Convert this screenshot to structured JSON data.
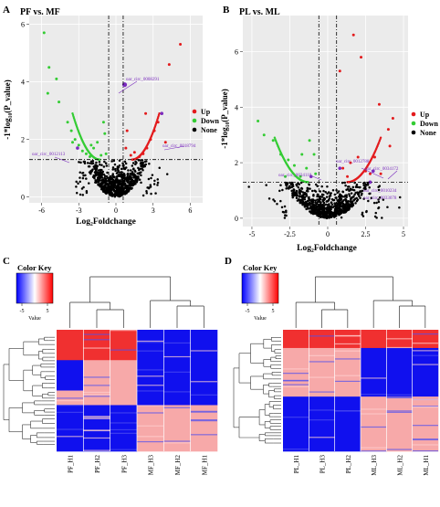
{
  "panels": {
    "A": {
      "letter": "A",
      "title": "PF vs. MF",
      "xlabel": "Log₂Foldchange",
      "ylabel": "-1*log₁₀(P_value)",
      "legend": [
        {
          "name": "Up",
          "color": "#e31a1c"
        },
        {
          "name": "Down",
          "color": "#33cc33"
        },
        {
          "name": "None",
          "color": "#000000"
        }
      ],
      "annotations": [
        "oar_circ_0008291",
        "oar_circ_0018794",
        "oar_circ_0012113"
      ]
    },
    "B": {
      "letter": "B",
      "title": "PL vs. ML",
      "xlabel": "Log₂Foldchange",
      "ylabel": "-1*log₁₀(P_value)",
      "legend": [
        {
          "name": "Up",
          "color": "#e31a1c"
        },
        {
          "name": "Down",
          "color": "#33cc33"
        },
        {
          "name": "None",
          "color": "#000000"
        }
      ],
      "annotations": [
        "oar_circ_0012788",
        "oar_circ_0034172",
        "oar_circ_0034110",
        "oar_circ_0010234",
        "oar_circ_0033078"
      ]
    },
    "C": {
      "letter": "C",
      "color_key_title": "Color Key",
      "color_key_ticks": [
        "-5",
        "5"
      ],
      "color_key_xlabel": "Value",
      "columns": [
        "PF_H1",
        "PF_H2",
        "PF_H3",
        "MF_H3",
        "MF_H2",
        "MF_H1"
      ]
    },
    "D": {
      "letter": "D",
      "color_key_title": "Color Key",
      "color_key_ticks": [
        "-5",
        "5"
      ],
      "color_key_xlabel": "Value",
      "columns": [
        "PL_H1",
        "PL_H3",
        "PL_H2",
        "ML_H3",
        "ML_H2",
        "ML_H1"
      ]
    }
  },
  "chart_data": [
    {
      "type": "scatter",
      "title": "PF vs. MF",
      "xlabel": "Log₂Foldchange",
      "ylabel": "-1*log₁₀(P_value)",
      "xlim": [
        -7,
        7
      ],
      "ylim": [
        -0.2,
        6.3
      ],
      "xticks": [
        -6,
        -3,
        0,
        3,
        6
      ],
      "yticks": [
        0,
        2,
        4,
        6
      ],
      "thresholds": {
        "x": [
          -0.585,
          0.585
        ],
        "y": 1.3
      },
      "series": [
        {
          "name": "Up",
          "color": "#e31a1c",
          "points": [
            [
              5.2,
              5.3
            ],
            [
              4.3,
              4.6
            ],
            [
              3.7,
              2.9
            ],
            [
              3.4,
              2.6
            ],
            [
              3.1,
              2.3
            ],
            [
              2.8,
              2.0
            ],
            [
              2.5,
              1.7
            ],
            [
              2.2,
              1.5
            ],
            [
              1.9,
              1.4
            ],
            [
              1.5,
              1.55
            ],
            [
              1.2,
              1.45
            ],
            [
              0.9,
              2.3
            ],
            [
              0.8,
              1.7
            ],
            [
              4.0,
              1.9
            ],
            [
              2.4,
              2.9
            ],
            [
              0.7,
              3.9
            ]
          ]
        },
        {
          "name": "Down",
          "color": "#33cc33",
          "points": [
            [
              -5.8,
              5.7
            ],
            [
              -5.4,
              4.5
            ],
            [
              -4.8,
              4.1
            ],
            [
              -5.5,
              3.6
            ],
            [
              -4.6,
              3.3
            ],
            [
              -3.9,
              2.6
            ],
            [
              -3.6,
              2.3
            ],
            [
              -3.3,
              2.0
            ],
            [
              -3.0,
              1.8
            ],
            [
              -2.7,
              1.6
            ],
            [
              -2.4,
              1.5
            ],
            [
              -2.1,
              1.4
            ],
            [
              -1.8,
              1.7
            ],
            [
              -1.5,
              1.9
            ],
            [
              -1.2,
              1.45
            ],
            [
              -0.9,
              2.2
            ],
            [
              -1.0,
              2.6
            ],
            [
              -0.8,
              1.5
            ],
            [
              -2.0,
              1.8
            ],
            [
              -3.5,
              1.9
            ]
          ]
        },
        {
          "name": "None",
          "color": "#000000",
          "points": []
        }
      ],
      "highlighted": [
        {
          "label": "oar_circ_0008291",
          "x": 0.7,
          "y": 3.9
        },
        {
          "label": "oar_circ_0018794",
          "x": 3.7,
          "y": 2.9
        },
        {
          "label": "oar_circ_0012113",
          "x": -3.1,
          "y": 1.7
        }
      ]
    },
    {
      "type": "scatter",
      "title": "PL vs. ML",
      "xlabel": "Log₂Foldchange",
      "ylabel": "-1*log₁₀(P_value)",
      "xlim": [
        -5.6,
        5.3
      ],
      "ylim": [
        -0.3,
        7.3
      ],
      "xticks": [
        -5,
        -2.5,
        0,
        2.5,
        5
      ],
      "yticks": [
        0,
        2,
        4,
        6
      ],
      "thresholds": {
        "x": [
          -0.585,
          0.585
        ],
        "y": 1.3
      },
      "series": [
        {
          "name": "Up",
          "color": "#e31a1c",
          "points": [
            [
              1.7,
              6.6
            ],
            [
              2.2,
              5.8
            ],
            [
              0.8,
              5.3
            ],
            [
              3.4,
              4.1
            ],
            [
              4.3,
              3.6
            ],
            [
              4.0,
              3.2
            ],
            [
              3.1,
              2.2
            ],
            [
              2.0,
              2.2
            ],
            [
              1.5,
              2.0
            ],
            [
              1.0,
              1.8
            ],
            [
              2.5,
              1.7
            ],
            [
              3.5,
              1.6
            ],
            [
              4.1,
              2.6
            ],
            [
              2.8,
              1.6
            ],
            [
              1.3,
              1.5
            ]
          ]
        },
        {
          "name": "Down",
          "color": "#33cc33",
          "points": [
            [
              -4.6,
              3.5
            ],
            [
              -4.2,
              3.0
            ],
            [
              -3.6,
              2.8
            ],
            [
              -3.1,
              2.3
            ],
            [
              -2.6,
              2.1
            ],
            [
              -2.2,
              1.9
            ],
            [
              -1.7,
              2.3
            ],
            [
              -1.2,
              2.8
            ],
            [
              -1.8,
              1.5
            ],
            [
              -0.8,
              1.6
            ],
            [
              -1.4,
              1.8
            ],
            [
              -2.8,
              1.5
            ],
            [
              -0.9,
              2.3
            ]
          ]
        },
        {
          "name": "None",
          "color": "#000000",
          "points": []
        }
      ],
      "highlighted": [
        {
          "label": "oar_circ_0012788",
          "x": 0.8,
          "y": 1.8
        },
        {
          "label": "oar_circ_0034172",
          "x": 3.0,
          "y": 1.7
        },
        {
          "label": "oar_circ_0034110",
          "x": -1.1,
          "y": 1.5
        },
        {
          "label": "oar_circ_0010234",
          "x": 2.8,
          "y": 1.3
        },
        {
          "label": "oar_circ_0033078",
          "x": 2.8,
          "y": 1.3
        }
      ]
    },
    {
      "type": "heatmap",
      "columns": [
        "PF_H1",
        "PF_H2",
        "PF_H3",
        "MF_H3",
        "MF_H2",
        "MF_H1"
      ],
      "scale": {
        "min": -5,
        "max": 5,
        "ticks": [
          -5,
          5
        ],
        "colors": [
          "#0000ff",
          "#ffffff",
          "#ff0000"
        ]
      },
      "blocks": [
        {
          "rows_from": 0.0,
          "rows_to": 0.25,
          "levels": [
            5,
            5,
            5,
            -5,
            -5,
            -5
          ]
        },
        {
          "rows_from": 0.25,
          "rows_to": 0.5,
          "levels": [
            -5,
            3,
            3,
            -5,
            -5,
            -5
          ]
        },
        {
          "rows_from": 0.5,
          "rows_to": 0.62,
          "levels": [
            3,
            3,
            3,
            -5,
            -5,
            -5
          ]
        },
        {
          "rows_from": 0.62,
          "rows_to": 1.0,
          "levels": [
            -5,
            -5,
            -5,
            3,
            3,
            3
          ]
        }
      ]
    },
    {
      "type": "heatmap",
      "columns": [
        "PL_H1",
        "PL_H3",
        "PL_H2",
        "ML_H3",
        "ML_H2",
        "ML_H1"
      ],
      "scale": {
        "min": -5,
        "max": 5,
        "ticks": [
          -5,
          5
        ],
        "colors": [
          "#0000ff",
          "#ffffff",
          "#ff0000"
        ]
      },
      "blocks": [
        {
          "rows_from": 0.0,
          "rows_to": 0.15,
          "levels": [
            5,
            5,
            5,
            5,
            5,
            5
          ]
        },
        {
          "rows_from": 0.15,
          "rows_to": 0.55,
          "levels": [
            3,
            3,
            3,
            -5,
            -5,
            -5
          ]
        },
        {
          "rows_from": 0.55,
          "rows_to": 1.0,
          "levels": [
            -5,
            -5,
            -5,
            3,
            3,
            3
          ]
        }
      ]
    }
  ]
}
